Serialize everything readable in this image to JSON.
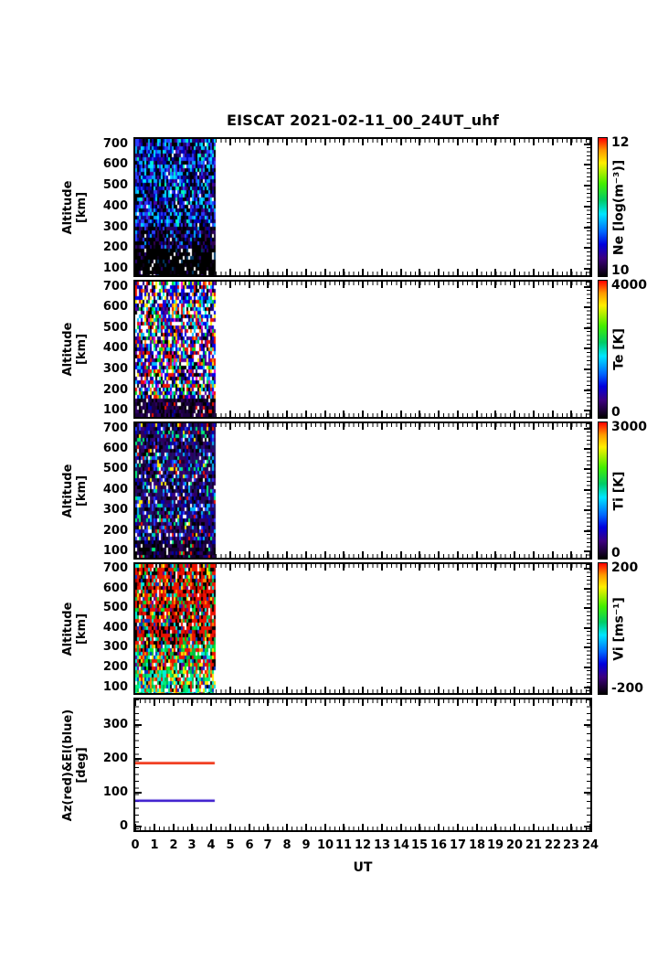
{
  "title": "EISCAT 2021-02-11_00_24UT_uhf",
  "x_axis": {
    "label": "UT",
    "min": 0,
    "max": 24,
    "tick_labels": [
      "0",
      "1",
      "2",
      "3",
      "4",
      "5",
      "6",
      "7",
      "8",
      "9",
      "10",
      "11",
      "12",
      "13",
      "14",
      "15",
      "16",
      "17",
      "18",
      "19",
      "20",
      "21",
      "22",
      "23",
      "24"
    ]
  },
  "data_window": {
    "ut_start": 0,
    "ut_end": 4.2
  },
  "colorbar_gradient": [
    "#ff0000 0%",
    "#ff9900 9%",
    "#ffee00 18%",
    "#44ee00 33%",
    "#00cc66 45%",
    "#00e5ff 55%",
    "#0066ff 68%",
    "#0000dd 77%",
    "#3c0080 87%",
    "#1a0033 95%",
    "#000000 100%"
  ],
  "chart_data": [
    {
      "id": "ne",
      "type": "heatmap",
      "ylabel_lines": [
        "Altitude",
        "[km]"
      ],
      "ylim": [
        70,
        725
      ],
      "yticks": [
        "700",
        "600",
        "500",
        "400",
        "300",
        "200",
        "100"
      ],
      "ytick_values": [
        700,
        600,
        500,
        400,
        300,
        200,
        100
      ],
      "colorbar": {
        "unit_label": "Ne [log(m⁻³)]",
        "top_label": "12",
        "bottom_label": "10"
      },
      "noise_bands": [
        {
          "frac": [
            0,
            0.62
          ],
          "colors": [
            "#000000",
            "#000044",
            "#0000bb",
            "#2a3bff",
            "#00aaff",
            "#00e5ff",
            "#00ffbb",
            "#26006b",
            "#4b00a8",
            "#ffffff"
          ],
          "weights": [
            20,
            10,
            14,
            14,
            12,
            8,
            5,
            10,
            5,
            2
          ]
        },
        {
          "frac": [
            0.62,
            0.8
          ],
          "colors": [
            "#000000",
            "#10002e",
            "#26006b",
            "#0000aa",
            "#2a3bff",
            "#00aaff",
            "#330050",
            "#ffffff"
          ],
          "weights": [
            40,
            16,
            12,
            8,
            7,
            6,
            8,
            3
          ]
        },
        {
          "frac": [
            0.8,
            1
          ],
          "colors": [
            "#000000",
            "#0d001c",
            "#ffffff",
            "#003a66",
            "#26006b"
          ],
          "weights": [
            78,
            10,
            5,
            3,
            4
          ]
        }
      ]
    },
    {
      "id": "te",
      "type": "heatmap",
      "ylabel_lines": [
        "Altitude",
        "[km]"
      ],
      "ylim": [
        70,
        725
      ],
      "yticks": [
        "700",
        "600",
        "500",
        "400",
        "300",
        "200",
        "100"
      ],
      "ytick_values": [
        700,
        600,
        500,
        400,
        300,
        200,
        100
      ],
      "colorbar": {
        "unit_label": "Te [K]",
        "top_label": "4000",
        "bottom_label": "0"
      },
      "noise_bands": [
        {
          "frac": [
            0,
            0.84
          ],
          "colors": [
            "#ffffff",
            "#ee1100",
            "#0000ee",
            "#00bbff",
            "#1b0080",
            "#5c00a0",
            "#000000",
            "#00dd22",
            "#ffee00",
            "#ff8800",
            "#ee00cc",
            "#00ffcc"
          ],
          "weights": [
            20,
            13,
            13,
            8,
            9,
            8,
            10,
            5,
            4,
            3,
            3,
            4
          ]
        },
        {
          "frac": [
            0.84,
            1
          ],
          "colors": [
            "#1b0040",
            "#2d0060",
            "#000000",
            "#0d001c",
            "#ffffff",
            "#0000aa",
            "#ee1100"
          ],
          "weights": [
            28,
            18,
            26,
            14,
            5,
            5,
            4
          ]
        }
      ]
    },
    {
      "id": "ti",
      "type": "heatmap",
      "ylabel_lines": [
        "Altitude",
        "[km]"
      ],
      "ylim": [
        70,
        725
      ],
      "yticks": [
        "700",
        "600",
        "500",
        "400",
        "300",
        "200",
        "100"
      ],
      "ytick_values": [
        700,
        600,
        500,
        400,
        300,
        200,
        100
      ],
      "colorbar": {
        "unit_label": "Ti [K]",
        "top_label": "3000",
        "bottom_label": "0"
      },
      "noise_bands": [
        {
          "frac": [
            0,
            0.86
          ],
          "colors": [
            "#2d0060",
            "#1b1466",
            "#140033",
            "#000000",
            "#0000bb",
            "#2a3bff",
            "#00bbff",
            "#00ee77",
            "#ffffff",
            "#ee1100",
            "#ffee00",
            "#3c0080"
          ],
          "weights": [
            22,
            14,
            12,
            12,
            8,
            7,
            6,
            5,
            5,
            3,
            2,
            4
          ]
        },
        {
          "frac": [
            0.86,
            1
          ],
          "colors": [
            "#140033",
            "#000000",
            "#2d0060",
            "#00ee77",
            "#ffffff",
            "#0000aa",
            "#ee1100"
          ],
          "weights": [
            34,
            28,
            18,
            4,
            4,
            8,
            4
          ]
        }
      ]
    },
    {
      "id": "vi",
      "type": "heatmap",
      "ylabel_lines": [
        "Altitude",
        "[km]"
      ],
      "ylim": [
        70,
        725
      ],
      "yticks": [
        "700",
        "600",
        "500",
        "400",
        "300",
        "200",
        "100"
      ],
      "ytick_values": [
        700,
        600,
        500,
        400,
        300,
        200,
        100
      ],
      "colorbar": {
        "unit_label": "Vi [ms⁻¹]",
        "top_label": "200",
        "bottom_label": "-200"
      },
      "noise_bands": [
        {
          "frac": [
            0,
            0.6
          ],
          "colors": [
            "#ee1100",
            "#000000",
            "#aa0000",
            "#ffffff",
            "#00bb44",
            "#0033cc",
            "#00eedd",
            "#ffee00",
            "#ff8800",
            "#5c00a0",
            "#00ee22"
          ],
          "weights": [
            38,
            18,
            8,
            6,
            7,
            5,
            4,
            4,
            4,
            3,
            3
          ]
        },
        {
          "frac": [
            0.6,
            0.8
          ],
          "colors": [
            "#ee1100",
            "#00bb44",
            "#00eedd",
            "#000000",
            "#0033cc",
            "#ffffff",
            "#ffee00",
            "#00ee22",
            "#ff8800",
            "#5c00a0"
          ],
          "weights": [
            18,
            14,
            12,
            12,
            10,
            8,
            8,
            8,
            5,
            5
          ]
        },
        {
          "frac": [
            0.8,
            1
          ],
          "colors": [
            "#00eedd",
            "#00ee77",
            "#ffffff",
            "#ee1100",
            "#00bb44",
            "#ffee00",
            "#0033cc",
            "#000000",
            "#ff8800"
          ],
          "weights": [
            20,
            16,
            12,
            11,
            12,
            9,
            8,
            6,
            6
          ]
        }
      ]
    },
    {
      "id": "azel",
      "type": "line",
      "ylabel_lines": [
        "Az(red)&El(blue)",
        "[deg]"
      ],
      "ylim": [
        -10,
        376
      ],
      "yticks": [
        "300",
        "200",
        "100",
        "0"
      ],
      "ytick_values": [
        300,
        200,
        100,
        0
      ],
      "series": [
        {
          "name": "Az",
          "color": "#ee2200",
          "value": 188
        },
        {
          "name": "El",
          "color": "#3311cc",
          "value": 77
        }
      ]
    }
  ]
}
